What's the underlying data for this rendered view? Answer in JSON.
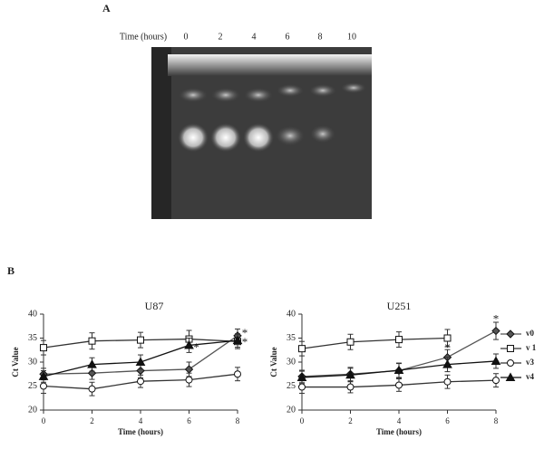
{
  "panels": {
    "a": "A",
    "b": "B"
  },
  "gel": {
    "axis_label": "Time (hours)",
    "lanes": [
      "0",
      "2",
      "4",
      "6",
      "8",
      "10"
    ]
  },
  "chart_data": [
    {
      "type": "line",
      "title": "U87",
      "x": [
        0,
        2,
        4,
        6,
        8
      ],
      "xlim": [
        0,
        8
      ],
      "xticks": [
        0,
        2,
        4,
        6,
        8
      ],
      "ylim": [
        20,
        40
      ],
      "yticks": [
        20,
        25,
        30,
        35,
        40
      ],
      "x_label": "Time (hours)",
      "y_label": "Ct Value",
      "series": [
        {
          "name": "v0",
          "color": "#555555",
          "marker": "diamond",
          "values": [
            27.5,
            27.7,
            28.2,
            28.5,
            35.5
          ],
          "errors": [
            1.2,
            1.3,
            1.5,
            1.5,
            1.4
          ]
        },
        {
          "name": "v 1",
          "color": "#333333",
          "marker": "square",
          "values": [
            33,
            34.4,
            34.6,
            34.8,
            34.3
          ],
          "errors": [
            1.5,
            1.7,
            1.6,
            1.8,
            1.5
          ]
        },
        {
          "name": "v3",
          "color": "#333333",
          "marker": "circle",
          "values": [
            25,
            24.4,
            26,
            26.3,
            27.5
          ],
          "errors": [
            1.5,
            1.4,
            1.3,
            1.4,
            1.4
          ]
        },
        {
          "name": "v4",
          "color": "#111111",
          "marker": "triangle",
          "values": [
            27,
            29.5,
            30,
            33.5,
            34.5
          ],
          "errors": [
            1.2,
            1.4,
            1.5,
            1.5,
            1.4
          ]
        }
      ],
      "annotations": [
        {
          "text": "*",
          "x": 6.3,
          "y": 32.8
        },
        {
          "text": "*",
          "x": 8.3,
          "y": 35.8
        },
        {
          "text": "*",
          "x": 8.3,
          "y": 34
        }
      ]
    },
    {
      "type": "line",
      "title": "U251",
      "x": [
        0,
        2,
        4,
        6,
        8
      ],
      "xlim": [
        0,
        8
      ],
      "xticks": [
        0,
        2,
        4,
        6,
        8
      ],
      "ylim": [
        20,
        40
      ],
      "yticks": [
        20,
        25,
        30,
        35,
        40
      ],
      "x_label": "Time (hours)",
      "y_label": "Ct Value",
      "series": [
        {
          "color": "#555555",
          "marker": "diamond",
          "values": [
            27,
            27.5,
            28.2,
            31,
            36.5
          ],
          "errors": [
            1.3,
            1.4,
            1.5,
            1.6,
            1.8
          ]
        },
        {
          "color": "#333333",
          "marker": "square",
          "values": [
            32.8,
            34.2,
            34.7,
            35,
            null
          ],
          "errors": [
            1.5,
            1.6,
            1.6,
            1.8,
            null
          ]
        },
        {
          "color": "#333333",
          "marker": "circle",
          "values": [
            24.8,
            24.8,
            25.2,
            25.9,
            26.2
          ],
          "errors": [
            1.3,
            1.2,
            1.3,
            1.4,
            1.4
          ]
        },
        {
          "color": "#111111",
          "marker": "triangle",
          "values": [
            26.8,
            27.3,
            28.3,
            29.5,
            30.2
          ],
          "errors": [
            1.3,
            1.4,
            1.5,
            1.5,
            1.5
          ]
        }
      ],
      "annotations": [
        {
          "text": "*",
          "x": 6,
          "y": 32.8
        },
        {
          "text": "*",
          "x": 8,
          "y": 38.8
        }
      ]
    }
  ]
}
